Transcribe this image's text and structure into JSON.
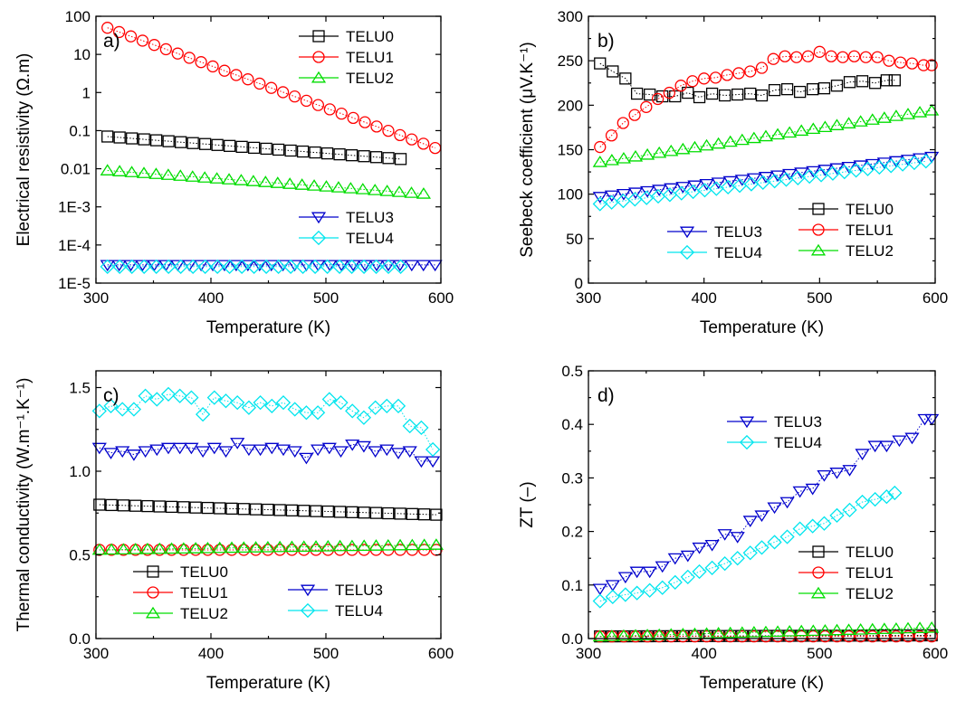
{
  "colors": {
    "TELU0": "#000000",
    "TELU1": "#ff0000",
    "TELU2": "#00dd00",
    "TELU3": "#0000cc",
    "TELU4": "#00e5ee"
  },
  "markers": {
    "TELU0": "square",
    "TELU1": "circle",
    "TELU2": "triangle-up",
    "TELU3": "triangle-down",
    "TELU4": "diamond"
  },
  "chart_data": [
    {
      "id": "a",
      "type": "scatter",
      "letter": "a)",
      "xlabel": "Temperature (K)",
      "ylabel": "Electrical resistivity (Ω.m)",
      "xlim": [
        300,
        600
      ],
      "ylim": [
        1e-05,
        100
      ],
      "yscale": "log",
      "xticks": [
        300,
        400,
        500,
        600
      ],
      "yticks": [
        1e-05,
        0.0001,
        0.001,
        0.01,
        0.1,
        1,
        10,
        100
      ],
      "yticklabels": [
        "1E-5",
        "1E-4",
        "1E-3",
        "0.01",
        "0.1",
        "1",
        "10",
        "100"
      ],
      "legends": [
        {
          "position": "top-right",
          "entries": [
            "TELU0",
            "TELU1",
            "TELU2"
          ]
        },
        {
          "position": "middle-right",
          "entries": [
            "TELU3",
            "TELU4"
          ]
        }
      ],
      "series": [
        {
          "name": "TELU0",
          "x_start": 310,
          "x_end": 565,
          "y_start": 0.07,
          "y_end": 0.018,
          "scale": "log",
          "count": 25
        },
        {
          "name": "TELU1",
          "x_start": 310,
          "x_end": 595,
          "y_start": 50,
          "y_end": 0.035,
          "scale": "log",
          "count": 29
        },
        {
          "name": "TELU2",
          "x_start": 310,
          "x_end": 585,
          "y_start": 0.009,
          "y_end": 0.0022,
          "scale": "log",
          "count": 27
        },
        {
          "name": "TELU3",
          "x_start": 310,
          "x_end": 595,
          "y_start": 3e-05,
          "y_end": 3e-05,
          "scale": "log",
          "count": 29
        },
        {
          "name": "TELU4",
          "x_start": 310,
          "x_end": 565,
          "y_start": 2.7e-05,
          "y_end": 2.7e-05,
          "scale": "log",
          "count": 25
        }
      ]
    },
    {
      "id": "b",
      "type": "scatter",
      "letter": "b)",
      "xlabel": "Temperature (K)",
      "ylabel": "Seebeck coefficient (μV.K⁻¹)",
      "xlim": [
        300,
        600
      ],
      "ylim": [
        0,
        300
      ],
      "yscale": "linear",
      "xticks": [
        300,
        400,
        500,
        600
      ],
      "yticks": [
        0,
        50,
        100,
        150,
        200,
        250,
        300
      ],
      "legends": [
        {
          "position": "bottom-left",
          "entries": [
            "TELU3",
            "TELU4"
          ]
        },
        {
          "position": "bottom-right",
          "entries": [
            "TELU0",
            "TELU1",
            "TELU2"
          ]
        }
      ],
      "series": [
        {
          "name": "TELU0",
          "x": [
            310,
            321,
            332,
            342,
            353,
            364,
            375,
            386,
            396,
            407,
            418,
            429,
            440,
            450,
            461,
            472,
            483,
            494,
            504,
            515,
            526,
            537,
            548,
            558,
            565
          ],
          "y": [
            247,
            238,
            230,
            213,
            212,
            210,
            210,
            214,
            209,
            213,
            211,
            212,
            213,
            211,
            217,
            218,
            215,
            218,
            219,
            222,
            226,
            227,
            225,
            228,
            228
          ]
        },
        {
          "name": "TELU1",
          "x": [
            310,
            320,
            330,
            340,
            350,
            360,
            370,
            380,
            390,
            400,
            410,
            420,
            430,
            440,
            450,
            460,
            470,
            480,
            490,
            500,
            510,
            520,
            530,
            540,
            550,
            560,
            570,
            580,
            590,
            597
          ],
          "y": [
            153,
            166,
            180,
            189,
            198,
            207,
            214,
            222,
            227,
            230,
            231,
            234,
            236,
            238,
            242,
            252,
            255,
            254,
            255,
            260,
            255,
            254,
            255,
            254,
            254,
            250,
            248,
            247,
            245,
            245
          ]
        },
        {
          "name": "TELU2",
          "x_start": 310,
          "x_end": 597,
          "y_start": 136,
          "y_end": 194,
          "count": 29
        },
        {
          "name": "TELU3",
          "x_start": 310,
          "x_end": 597,
          "y_start": 97,
          "y_end": 142,
          "count": 29
        },
        {
          "name": "TELU4",
          "x_start": 310,
          "x_end": 592,
          "y_start": 89,
          "y_end": 137,
          "count": 29
        }
      ]
    },
    {
      "id": "c",
      "type": "scatter",
      "letter": "c)",
      "xlabel": "Temperature (K)",
      "ylabel": "Thermal conductivity (W.m⁻¹.K⁻¹)",
      "xlim": [
        300,
        600
      ],
      "ylim": [
        0,
        1.6
      ],
      "yscale": "linear",
      "xticks": [
        300,
        400,
        500,
        600
      ],
      "yticks": [
        0.0,
        0.5,
        1.0,
        1.5
      ],
      "yticklabels": [
        "0.0",
        "0.5",
        "1.0",
        "1.5"
      ],
      "legends": [
        {
          "position": "bottom-left",
          "entries": [
            "TELU0",
            "TELU1",
            "TELU2"
          ]
        },
        {
          "position": "bottom-center",
          "entries": [
            "TELU3",
            "TELU4"
          ]
        }
      ],
      "series": [
        {
          "name": "TELU0",
          "x_start": 303,
          "x_end": 596,
          "y_start": 0.8,
          "y_end": 0.74,
          "count": 29
        },
        {
          "name": "TELU1",
          "x_start": 303,
          "x_end": 596,
          "y_start": 0.53,
          "y_end": 0.53,
          "count": 29
        },
        {
          "name": "TELU2",
          "x_start": 303,
          "x_end": 596,
          "y_start": 0.53,
          "y_end": 0.56,
          "count": 29
        },
        {
          "name": "TELU3",
          "x": [
            303,
            313,
            323,
            333,
            343,
            353,
            363,
            373,
            383,
            393,
            403,
            413,
            423,
            433,
            443,
            453,
            463,
            473,
            483,
            493,
            503,
            513,
            523,
            533,
            543,
            553,
            563,
            573,
            583,
            593
          ],
          "y": [
            1.14,
            1.11,
            1.12,
            1.1,
            1.12,
            1.13,
            1.14,
            1.14,
            1.14,
            1.12,
            1.14,
            1.12,
            1.17,
            1.13,
            1.13,
            1.14,
            1.13,
            1.12,
            1.08,
            1.13,
            1.14,
            1.12,
            1.16,
            1.15,
            1.12,
            1.13,
            1.11,
            1.12,
            1.06,
            1.06
          ]
        },
        {
          "name": "TELU4",
          "x": [
            303,
            313,
            323,
            333,
            343,
            353,
            363,
            373,
            383,
            393,
            403,
            413,
            423,
            433,
            443,
            453,
            463,
            473,
            483,
            493,
            503,
            513,
            523,
            533,
            543,
            553,
            563,
            573,
            583,
            593
          ],
          "y": [
            1.36,
            1.39,
            1.37,
            1.37,
            1.45,
            1.43,
            1.46,
            1.45,
            1.44,
            1.34,
            1.44,
            1.42,
            1.41,
            1.38,
            1.41,
            1.39,
            1.41,
            1.37,
            1.35,
            1.35,
            1.43,
            1.41,
            1.36,
            1.32,
            1.38,
            1.39,
            1.39,
            1.27,
            1.26,
            1.13
          ]
        }
      ]
    },
    {
      "id": "d",
      "type": "scatter",
      "letter": "d)",
      "xlabel": "Temperature (K)",
      "ylabel": "ZT (–)",
      "xlim": [
        300,
        600
      ],
      "ylim": [
        0,
        0.5
      ],
      "yscale": "linear",
      "xticks": [
        300,
        400,
        500,
        600
      ],
      "yticks": [
        0.0,
        0.1,
        0.2,
        0.3,
        0.4,
        0.5
      ],
      "yticklabels": [
        "0.0",
        "0.1",
        "0.2",
        "0.3",
        "0.4",
        "0.5"
      ],
      "legends": [
        {
          "position": "top-center",
          "entries": [
            "TELU3",
            "TELU4"
          ]
        },
        {
          "position": "bottom-right",
          "entries": [
            "TELU0",
            "TELU1",
            "TELU2"
          ]
        }
      ],
      "series": [
        {
          "name": "TELU0",
          "x_start": 310,
          "x_end": 597,
          "y_start": 0.004,
          "y_end": 0.006,
          "count": 29
        },
        {
          "name": "TELU1",
          "x_start": 310,
          "x_end": 597,
          "y_start": 0.004,
          "y_end": 0.004,
          "count": 29
        },
        {
          "name": "TELU2",
          "x_start": 310,
          "x_end": 597,
          "y_start": 0.004,
          "y_end": 0.02,
          "count": 29
        },
        {
          "name": "TELU3",
          "x": [
            310,
            321,
            332,
            342,
            353,
            364,
            375,
            386,
            396,
            407,
            418,
            429,
            440,
            450,
            461,
            472,
            483,
            494,
            504,
            515,
            526,
            537,
            548,
            558,
            569,
            580,
            591,
            597
          ],
          "y": [
            0.093,
            0.1,
            0.115,
            0.125,
            0.125,
            0.135,
            0.15,
            0.155,
            0.17,
            0.175,
            0.195,
            0.19,
            0.22,
            0.23,
            0.245,
            0.255,
            0.275,
            0.28,
            0.305,
            0.31,
            0.315,
            0.345,
            0.36,
            0.36,
            0.37,
            0.375,
            0.41,
            0.41
          ]
        },
        {
          "name": "TELU4",
          "x": [
            310,
            321,
            332,
            342,
            353,
            364,
            375,
            386,
            396,
            407,
            418,
            429,
            440,
            450,
            461,
            472,
            483,
            494,
            504,
            515,
            526,
            537,
            548,
            558,
            565
          ],
          "y": [
            0.07,
            0.078,
            0.082,
            0.085,
            0.09,
            0.095,
            0.105,
            0.115,
            0.125,
            0.132,
            0.14,
            0.15,
            0.16,
            0.17,
            0.18,
            0.19,
            0.205,
            0.21,
            0.215,
            0.23,
            0.24,
            0.255,
            0.26,
            0.265,
            0.272
          ]
        }
      ]
    }
  ]
}
